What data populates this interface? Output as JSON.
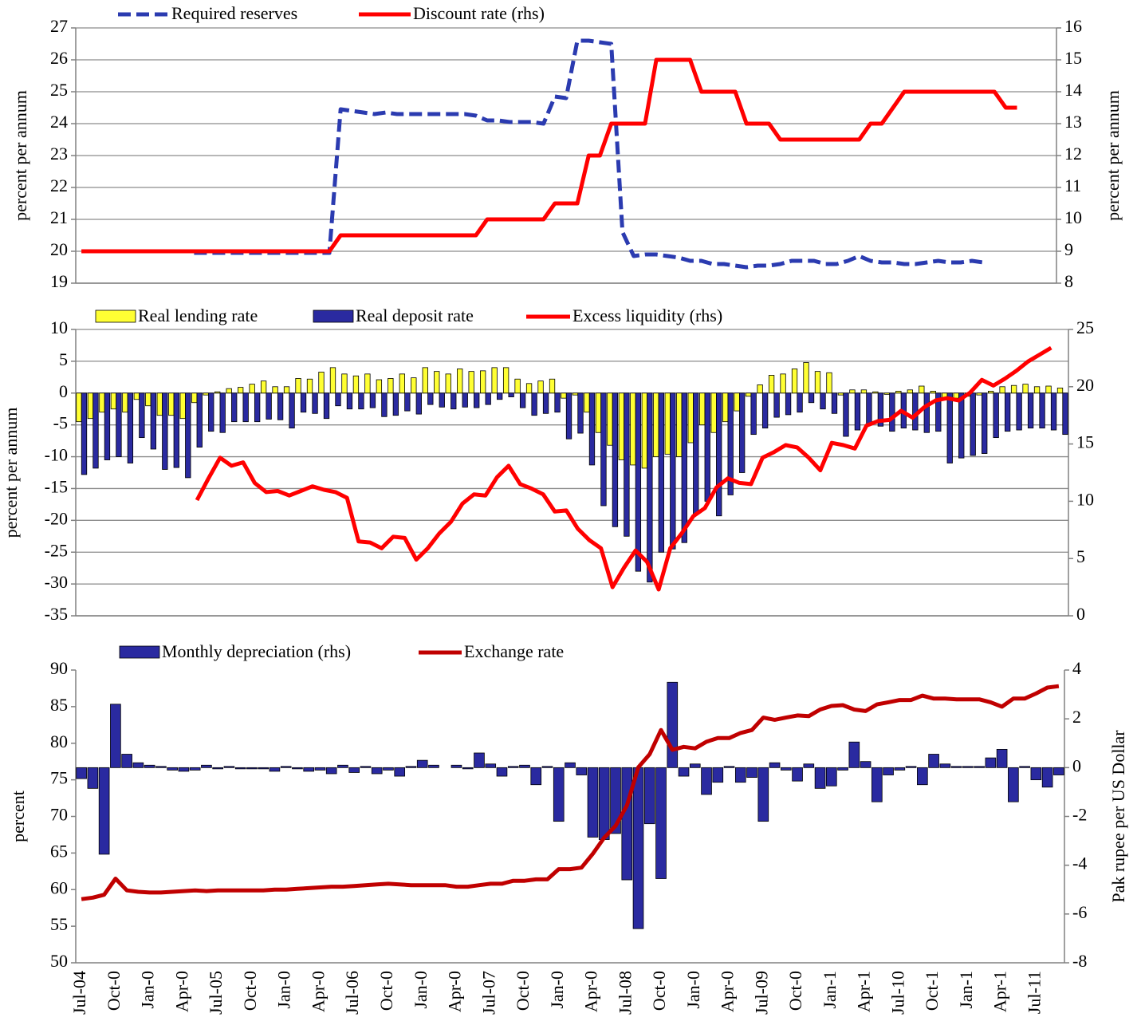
{
  "chart_data": [
    {
      "type": "line",
      "ylabel": "percent per annum",
      "y2label": "percent per annum",
      "ylim": [
        19,
        27
      ],
      "yticks": [
        19,
        20,
        21,
        22,
        23,
        24,
        25,
        26,
        27
      ],
      "y2lim": [
        8,
        16
      ],
      "y2ticks": [
        8,
        9,
        10,
        11,
        12,
        13,
        14,
        15,
        16
      ],
      "grid": true,
      "series": [
        {
          "name": "Required reserves",
          "type": "line",
          "dashed": true,
          "color": "#2b3bb0",
          "values": [
            null,
            null,
            null,
            null,
            null,
            null,
            null,
            null,
            null,
            null,
            19.95,
            19.95,
            19.95,
            19.95,
            19.95,
            19.95,
            19.95,
            19.95,
            19.95,
            19.95,
            19.95,
            19.95,
            19.95,
            24.45,
            24.4,
            24.35,
            24.3,
            24.35,
            24.3,
            24.3,
            24.3,
            24.3,
            24.3,
            24.3,
            24.3,
            24.25,
            24.1,
            24.1,
            24.05,
            24.05,
            24.05,
            24.0,
            24.85,
            24.8,
            26.6,
            26.6,
            26.55,
            26.5,
            20.6,
            19.85,
            19.9,
            19.9,
            19.85,
            19.8,
            19.7,
            19.7,
            19.6,
            19.6,
            19.55,
            19.5,
            19.55,
            19.55,
            19.6,
            19.7,
            19.7,
            19.7,
            19.6,
            19.6,
            19.7,
            19.85,
            19.7,
            19.65,
            19.65,
            19.6,
            19.6,
            19.65,
            19.7,
            19.65,
            19.65,
            19.7,
            19.65,
            null,
            null,
            null,
            null,
            null,
            null
          ]
        },
        {
          "name": "Discount rate (rhs)",
          "type": "line",
          "axis": "y2",
          "color": "#ff0000",
          "values": [
            9,
            9,
            9,
            9,
            9,
            9,
            9,
            9,
            9,
            9,
            9,
            9,
            9,
            9,
            9,
            9,
            9,
            9,
            9,
            9,
            9,
            9,
            9,
            9.5,
            9.5,
            9.5,
            9.5,
            9.5,
            9.5,
            9.5,
            9.5,
            9.5,
            9.5,
            9.5,
            9.5,
            9.5,
            10,
            10,
            10,
            10,
            10,
            10,
            10.5,
            10.5,
            10.5,
            12,
            12,
            13,
            13,
            13,
            13,
            15,
            15,
            15,
            15,
            14,
            14,
            14,
            14,
            13,
            13,
            13,
            12.5,
            12.5,
            12.5,
            12.5,
            12.5,
            12.5,
            12.5,
            12.5,
            13,
            13,
            13.5,
            14,
            14,
            14,
            14,
            14,
            14,
            14,
            14,
            14,
            13.5,
            13.5,
            null,
            null,
            null
          ]
        }
      ]
    },
    {
      "type": "bar-line",
      "ylabel": "percent per annum",
      "ylim": [
        -35,
        10
      ],
      "yticks": [
        -35,
        -30,
        -25,
        -20,
        -15,
        -10,
        -5,
        0,
        5,
        10
      ],
      "y2lim": [
        0,
        25
      ],
      "y2ticks": [
        0,
        5,
        10,
        15,
        20,
        25
      ],
      "grid": true,
      "series": [
        {
          "name": "Real lending rate",
          "type": "bar",
          "color": "#ffff33",
          "values": [
            -4.5,
            -4,
            -3,
            -2.5,
            -3,
            -1,
            -2,
            -3.5,
            -3.5,
            -4,
            -1.5,
            -0.3,
            0.2,
            0.7,
            0.9,
            1.4,
            1.9,
            1,
            1,
            2.3,
            2.2,
            3.3,
            4,
            3,
            2.7,
            3,
            2.1,
            2.3,
            3,
            2.4,
            4,
            3.4,
            3,
            3.8,
            3.4,
            3.5,
            4,
            4,
            2.2,
            1.5,
            1.9,
            2.2,
            -0.8,
            -0.3,
            -3,
            -6.2,
            -8.2,
            -10.5,
            -11.3,
            -11.8,
            -10,
            -9.6,
            -10,
            -7.8,
            -5,
            -6.2,
            -4.5,
            -2.8,
            -0.5,
            1.3,
            2.8,
            3,
            3.8,
            4.8,
            3.4,
            3.2,
            -0.3,
            0.5,
            0.5,
            0.2,
            -0.2,
            0.3,
            0.5,
            1.1,
            0.3,
            -1,
            -0.8,
            -0.5,
            -0.3,
            0.3,
            1,
            1.2,
            1.4,
            1,
            1.1,
            0.8
          ]
        },
        {
          "name": "Real deposit rate",
          "type": "bar",
          "color": "#2a2aa0",
          "values": [
            -12.8,
            -11.8,
            -10.5,
            -10,
            -11,
            -7,
            -8.8,
            -12,
            -11.7,
            -13.3,
            -8.5,
            -6,
            -6.2,
            -4.5,
            -4.5,
            -4.5,
            -4.1,
            -4.2,
            -5.5,
            -3,
            -3.2,
            -4,
            -2,
            -2.5,
            -2.5,
            -2.3,
            -3.7,
            -3.5,
            -2.8,
            -3.3,
            -1.8,
            -2.2,
            -2.5,
            -2.2,
            -2.3,
            -1.8,
            -1,
            -0.6,
            -2.3,
            -3.5,
            -3.2,
            -3,
            -7.2,
            -6.3,
            -11.3,
            -17.7,
            -21,
            -22.5,
            -28,
            -29.7,
            -25,
            -24.5,
            -23.5,
            -19,
            -17,
            -19.3,
            -16,
            -12.5,
            -6.5,
            -5.5,
            -3.8,
            -3.4,
            -3,
            -1.5,
            -2.5,
            -3.2,
            -6.8,
            -5.8,
            -5,
            -5.2,
            -6,
            -5.5,
            -5.8,
            -6.2,
            -6,
            -11,
            -10.2,
            -9.8,
            -9.5,
            -7,
            -6,
            -5.8,
            -5.5,
            -5.5,
            -5.8,
            -6.5
          ]
        },
        {
          "name": "Excess liquidity (rhs)",
          "type": "line",
          "axis": "y2",
          "color": "#ff0000",
          "values": [
            null,
            null,
            null,
            null,
            null,
            null,
            null,
            null,
            null,
            null,
            10.1,
            12,
            13.8,
            13.1,
            13.4,
            11.6,
            10.8,
            10.9,
            10.5,
            10.9,
            11.3,
            11,
            10.8,
            10.3,
            6.5,
            6.4,
            5.9,
            6.9,
            6.8,
            4.9,
            5.9,
            7.2,
            8.2,
            9.8,
            10.6,
            10.5,
            12.1,
            13.1,
            11.5,
            11.1,
            10.6,
            9.1,
            9.2,
            7.6,
            6.6,
            5.9,
            2.5,
            4.2,
            5.7,
            4.7,
            2.3,
            5.9,
            7.2,
            8.7,
            9.4,
            11.2,
            12,
            11.6,
            11.5,
            13.8,
            14.3,
            14.9,
            14.7,
            13.8,
            12.7,
            15.1,
            14.9,
            14.6,
            16.6,
            17,
            17.1,
            17.9,
            17.3,
            18.2,
            18.8,
            19,
            18.8,
            19.5,
            20.6,
            20.1,
            20.7,
            21.4,
            22.2,
            22.8,
            23.4,
            null
          ]
        }
      ]
    },
    {
      "type": "bar-line",
      "ylabel": "percent",
      "y2label": "Pak rupee per US Dollar",
      "ylim": [
        50,
        90
      ],
      "yticks": [
        50,
        55,
        60,
        65,
        70,
        75,
        80,
        85,
        90
      ],
      "y2lim": [
        -8,
        4
      ],
      "y2ticks": [
        -8,
        -6,
        -4,
        -2,
        0,
        2,
        4
      ],
      "grid": false,
      "categories": [
        "Jul-04",
        null,
        null,
        "Oct-0",
        null,
        null,
        "Jan-0",
        null,
        null,
        "Apr-0",
        null,
        null,
        "Jul-05",
        null,
        null,
        "Oct-0",
        null,
        null,
        "Jan-0",
        null,
        null,
        "Apr-0",
        null,
        null,
        "Jul-06",
        null,
        null,
        "Oct-0",
        null,
        null,
        "Jan-0",
        null,
        null,
        "Apr-0",
        null,
        null,
        "Jul-07",
        null,
        null,
        "Oct-0",
        null,
        null,
        "Jan-0",
        null,
        null,
        "Apr-0",
        null,
        null,
        "Jul-08",
        null,
        null,
        "Oct-0",
        null,
        null,
        "Jan-0",
        null,
        null,
        "Apr-0",
        null,
        null,
        "Jul-09",
        null,
        null,
        "Oct-0",
        null,
        null,
        "Jan-1",
        null,
        null,
        "Apr-1",
        null,
        null,
        "Jul-10",
        null,
        null,
        "Oct-1",
        null,
        null,
        "Jan-1",
        null,
        null,
        "Apr-1",
        null,
        null,
        "Jul-11",
        null,
        null
      ],
      "series": [
        {
          "name": "Monthly depreciation (rhs)",
          "type": "bar",
          "axis": "y2",
          "color": "#2a2aa0",
          "values": [
            -0.45,
            -0.85,
            -3.55,
            2.6,
            0.55,
            0.2,
            0.1,
            0.05,
            -0.1,
            -0.15,
            -0.1,
            0.1,
            -0.05,
            0.05,
            -0.05,
            -0.05,
            -0.05,
            -0.15,
            0.05,
            -0.05,
            -0.15,
            -0.1,
            -0.25,
            0.1,
            -0.2,
            0.05,
            -0.25,
            -0.1,
            -0.35,
            0.05,
            0.3,
            0.1,
            0,
            0.1,
            -0.05,
            0.6,
            0.15,
            -0.35,
            0.05,
            0.1,
            -0.7,
            0.05,
            -2.2,
            0.2,
            -0.3,
            -2.85,
            -2.95,
            -2.7,
            -4.6,
            -6.6,
            -2.3,
            -4.55,
            3.5,
            -0.35,
            0.15,
            -1.1,
            -0.6,
            0.05,
            -0.6,
            -0.4,
            -2.2,
            0.2,
            -0.1,
            -0.55,
            0.15,
            -0.85,
            -0.75,
            -0.1,
            1.05,
            0.25,
            -1.4,
            -0.3,
            -0.1,
            0.05,
            -0.7,
            0.55,
            0.15,
            0.05,
            0.05,
            0.05,
            0.4,
            0.75,
            -1.4,
            0.05,
            -0.5,
            -0.8,
            -0.3
          ]
        },
        {
          "name": "Exchange rate",
          "type": "line",
          "color": "#c00000",
          "values": [
            58.7,
            58.9,
            59.3,
            61.5,
            59.9,
            59.7,
            59.6,
            59.6,
            59.7,
            59.8,
            59.9,
            59.8,
            59.9,
            59.9,
            59.9,
            59.9,
            59.9,
            60,
            60,
            60.1,
            60.2,
            60.3,
            60.4,
            60.4,
            60.5,
            60.6,
            60.7,
            60.8,
            60.7,
            60.6,
            60.6,
            60.6,
            60.6,
            60.4,
            60.4,
            60.6,
            60.8,
            60.8,
            61.2,
            61.2,
            61.4,
            61.4,
            62.8,
            62.8,
            63,
            64.9,
            67.1,
            68.7,
            71.5,
            76.7,
            78.5,
            81.8,
            79.1,
            79.5,
            79.3,
            80.2,
            80.7,
            80.7,
            81.4,
            81.8,
            83.5,
            83.2,
            83.5,
            83.8,
            83.7,
            84.6,
            85.1,
            85.2,
            84.6,
            84.4,
            85.3,
            85.6,
            85.9,
            85.9,
            86.5,
            86.1,
            86.1,
            86,
            86,
            86,
            85.6,
            85,
            86.1,
            86.1,
            86.8,
            87.6,
            87.8
          ]
        }
      ]
    }
  ]
}
